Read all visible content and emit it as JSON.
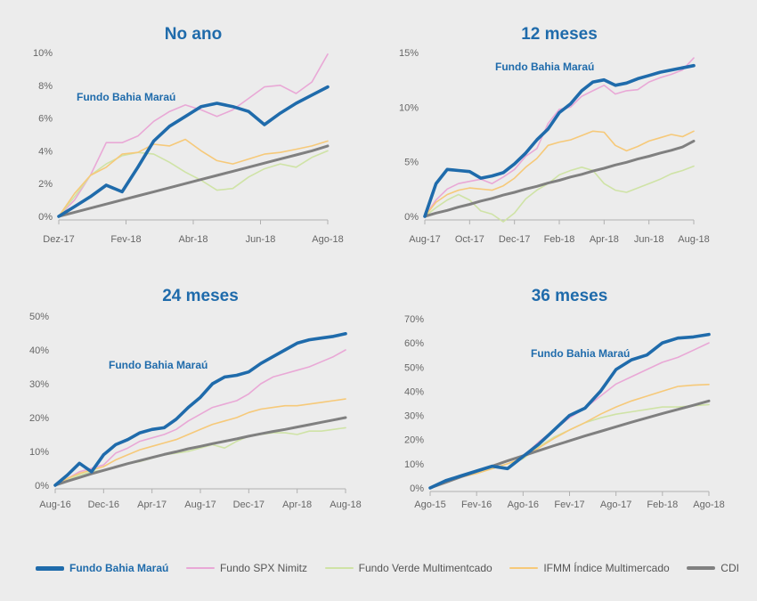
{
  "colors": {
    "background": "#ececec",
    "title": "#1f6bab",
    "axis_text": "#666666",
    "series": {
      "Fundo Bahia Maraú": "#1f6bab",
      "Fundo SPX Nimitz": "#e9a8d6",
      "Fundo Verde Multimentcado": "#cfe3a6",
      "IFMM Índice Multimercado": "#f6c979",
      "CDI": "#808080"
    }
  },
  "legend": {
    "items": [
      "Fundo Bahia Maraú",
      "Fundo SPX Nimitz",
      "Fundo Verde Multimentcado",
      "IFMM Índice Multimercado",
      "CDI"
    ]
  },
  "chart_data": [
    {
      "type": "line",
      "title": "No ano",
      "annotation": "Fundo Bahia Maraú",
      "xlim": [
        0,
        8.5
      ],
      "ylim": [
        0,
        10
      ],
      "yticks": [
        "0%",
        "2%",
        "4%",
        "6%",
        "8%",
        "10%"
      ],
      "xticks": [
        "Dez-17",
        "Fev-18",
        "Abr-18",
        "Jun-18",
        "Ago-18"
      ],
      "x": [
        0,
        0.5,
        1,
        1.5,
        2,
        2.5,
        3,
        3.5,
        4,
        4.5,
        5,
        5.5,
        6,
        6.5,
        7,
        7.5,
        8,
        8.5
      ],
      "series": [
        {
          "name": "Fundo SPX Nimitz",
          "values": [
            0,
            1.0,
            2.5,
            4.5,
            4.5,
            4.9,
            5.8,
            6.4,
            6.8,
            6.5,
            6.1,
            6.5,
            7.2,
            7.9,
            8.0,
            7.5,
            8.2,
            9.9
          ]
        },
        {
          "name": "Fundo Verde Multimentcado",
          "values": [
            0,
            1.2,
            2.5,
            3.2,
            3.7,
            3.9,
            3.8,
            3.3,
            2.7,
            2.2,
            1.6,
            1.7,
            2.4,
            2.9,
            3.2,
            3.0,
            3.6,
            4.0
          ]
        },
        {
          "name": "IFMM Índice Multimercado",
          "values": [
            0,
            1.4,
            2.5,
            3.0,
            3.8,
            3.9,
            4.4,
            4.3,
            4.7,
            4.0,
            3.4,
            3.2,
            3.5,
            3.8,
            3.9,
            4.1,
            4.3,
            4.6
          ]
        },
        {
          "name": "CDI",
          "values": [
            0,
            0.25,
            0.5,
            0.75,
            1.0,
            1.25,
            1.5,
            1.75,
            2.0,
            2.25,
            2.5,
            2.75,
            3.0,
            3.25,
            3.5,
            3.75,
            4.0,
            4.3
          ]
        },
        {
          "name": "Fundo Bahia Maraú",
          "values": [
            0,
            0.6,
            1.2,
            1.9,
            1.5,
            3.0,
            4.6,
            5.5,
            6.1,
            6.7,
            6.9,
            6.7,
            6.4,
            5.6,
            6.3,
            6.9,
            7.4,
            7.9
          ]
        }
      ]
    },
    {
      "type": "line",
      "title": "12 meses",
      "annotation": "Fundo Bahia Maraú",
      "xlim": [
        0,
        12
      ],
      "ylim": [
        0,
        15
      ],
      "yticks": [
        "0%",
        "5%",
        "10%",
        "15%"
      ],
      "xticks": [
        "Aug-17",
        "Oct-17",
        "Dec-17",
        "Feb-18",
        "Apr-18",
        "Jun-18",
        "Aug-18"
      ],
      "x": [
        0,
        0.5,
        1,
        1.5,
        2,
        2.5,
        3,
        3.5,
        4,
        4.5,
        5,
        5.5,
        6,
        6.5,
        7,
        7.5,
        8,
        8.5,
        9,
        9.5,
        10,
        10.5,
        11,
        11.5,
        12
      ],
      "series": [
        {
          "name": "Fundo SPX Nimitz",
          "values": [
            0,
            1.5,
            2.5,
            3.0,
            3.2,
            3.4,
            3.0,
            3.6,
            4.3,
            5.5,
            6.2,
            8.5,
            9.8,
            10.0,
            11.0,
            11.5,
            12.0,
            11.2,
            11.5,
            11.6,
            12.3,
            12.7,
            13.0,
            13.4,
            14.5
          ]
        },
        {
          "name": "Fundo Verde Multimentcado",
          "values": [
            0,
            0.8,
            1.5,
            2.0,
            1.5,
            0.5,
            0.2,
            -0.5,
            0.3,
            1.6,
            2.4,
            3.0,
            3.8,
            4.2,
            4.5,
            4.2,
            3.0,
            2.4,
            2.2,
            2.6,
            3.0,
            3.4,
            3.9,
            4.2,
            4.6
          ]
        },
        {
          "name": "IFMM Índice Multimercado",
          "values": [
            0,
            1.3,
            2.0,
            2.4,
            2.6,
            2.5,
            2.4,
            2.8,
            3.5,
            4.5,
            5.3,
            6.5,
            6.8,
            7.0,
            7.4,
            7.8,
            7.7,
            6.5,
            6.0,
            6.4,
            6.9,
            7.2,
            7.5,
            7.3,
            7.8
          ]
        },
        {
          "name": "CDI",
          "values": [
            0,
            0.3,
            0.55,
            0.85,
            1.1,
            1.4,
            1.65,
            1.95,
            2.2,
            2.5,
            2.75,
            3.05,
            3.3,
            3.6,
            3.85,
            4.15,
            4.4,
            4.7,
            4.95,
            5.25,
            5.5,
            5.8,
            6.05,
            6.35,
            6.9
          ]
        },
        {
          "name": "Fundo Bahia Maraú",
          "values": [
            0,
            3.0,
            4.3,
            4.2,
            4.1,
            3.5,
            3.7,
            4.0,
            4.8,
            5.8,
            7.0,
            8.0,
            9.5,
            10.3,
            11.5,
            12.3,
            12.5,
            12.0,
            12.2,
            12.6,
            12.9,
            13.2,
            13.4,
            13.6,
            13.8
          ]
        }
      ]
    },
    {
      "type": "line",
      "title": "24 meses",
      "annotation": "Fundo Bahia Maraú",
      "xlim": [
        0,
        24
      ],
      "ylim": [
        0,
        50
      ],
      "yticks": [
        "0%",
        "10%",
        "20%",
        "30%",
        "40%",
        "50%"
      ],
      "xticks": [
        "Aug-16",
        "Dec-16",
        "Apr-17",
        "Aug-17",
        "Dec-17",
        "Apr-18",
        "Aug-18"
      ],
      "x": [
        0,
        1,
        2,
        3,
        4,
        5,
        6,
        7,
        8,
        9,
        10,
        11,
        12,
        13,
        14,
        15,
        16,
        17,
        18,
        19,
        20,
        21,
        22,
        23,
        24
      ],
      "series": [
        {
          "name": "Fundo SPX Nimitz",
          "values": [
            0,
            2.0,
            4.0,
            5.0,
            6.0,
            9.5,
            11.0,
            13.0,
            14.0,
            15.0,
            16.5,
            19.0,
            21.0,
            23.0,
            24.0,
            25.0,
            27.0,
            30.0,
            32.0,
            33.0,
            34.0,
            35.0,
            36.5,
            38.0,
            40.0
          ]
        },
        {
          "name": "Fundo Verde Multimentcado",
          "values": [
            0,
            1.5,
            3.0,
            4.0,
            4.5,
            5.5,
            6.5,
            7.0,
            8.0,
            9.0,
            9.5,
            10.0,
            11.0,
            12.0,
            11.0,
            13.0,
            14.5,
            15.0,
            15.5,
            15.5,
            15.0,
            16.0,
            16.0,
            16.5,
            17.0
          ]
        },
        {
          "name": "IFMM Índice Multimercado",
          "values": [
            0,
            2.0,
            3.5,
            4.5,
            5.5,
            7.5,
            9.0,
            10.5,
            11.5,
            12.5,
            13.5,
            15.0,
            16.5,
            18.0,
            19.0,
            20.0,
            21.5,
            22.5,
            23.0,
            23.5,
            23.5,
            24.0,
            24.5,
            25.0,
            25.5
          ]
        },
        {
          "name": "CDI",
          "values": [
            0,
            1.2,
            2.3,
            3.4,
            4.4,
            5.4,
            6.4,
            7.3,
            8.2,
            9.1,
            9.9,
            10.8,
            11.5,
            12.3,
            13.0,
            13.7,
            14.5,
            15.2,
            15.9,
            16.5,
            17.2,
            17.9,
            18.6,
            19.3,
            20.0
          ]
        },
        {
          "name": "Fundo Bahia Maraú",
          "values": [
            0,
            3.0,
            6.5,
            4.0,
            9.0,
            12.0,
            13.5,
            15.5,
            16.5,
            17.0,
            19.5,
            23.0,
            26.0,
            30.0,
            32.0,
            32.5,
            33.5,
            36.0,
            38.0,
            40.0,
            42.0,
            43.0,
            43.5,
            44.0,
            44.8
          ]
        }
      ]
    },
    {
      "type": "line",
      "title": "36 meses",
      "annotation": "Fundo Bahia Maraú",
      "xlim": [
        0,
        36
      ],
      "ylim": [
        0,
        70
      ],
      "yticks": [
        "0%",
        "10%",
        "20%",
        "30%",
        "40%",
        "50%",
        "60%",
        "70%"
      ],
      "xticks": [
        "Ago-15",
        "Fev-16",
        "Ago-16",
        "Fev-17",
        "Ago-17",
        "Feb-18",
        "Ago-18"
      ],
      "x": [
        0,
        2,
        4,
        6,
        8,
        10,
        12,
        14,
        16,
        18,
        20,
        22,
        24,
        26,
        28,
        30,
        32,
        34,
        36
      ],
      "series": [
        {
          "name": "Fundo SPX Nimitz",
          "values": [
            0,
            2.5,
            4.5,
            6.0,
            9.0,
            11.0,
            13.0,
            19.0,
            24.0,
            29.0,
            33.0,
            38.0,
            43.0,
            46.0,
            49.0,
            52.0,
            54.0,
            57.0,
            60.0
          ]
        },
        {
          "name": "Fundo Verde Multimentcado",
          "values": [
            0,
            2.5,
            4.5,
            6.0,
            8.0,
            10.0,
            12.0,
            17.0,
            21.0,
            24.0,
            27.0,
            29.0,
            30.5,
            31.5,
            32.5,
            33.5,
            33.5,
            34.0,
            34.5
          ]
        },
        {
          "name": "IFMM Índice Multimercado",
          "values": [
            0,
            2.5,
            4.5,
            6.0,
            8.0,
            10.0,
            12.5,
            16.5,
            20.5,
            24.0,
            27.0,
            30.5,
            33.5,
            36.0,
            38.0,
            40.0,
            42.0,
            42.5,
            42.8
          ]
        },
        {
          "name": "CDI",
          "values": [
            0,
            2.3,
            4.6,
            6.8,
            9.0,
            11.2,
            13.3,
            15.4,
            17.5,
            19.5,
            21.5,
            23.4,
            25.3,
            27.2,
            29.0,
            30.8,
            32.5,
            34.2,
            36.0
          ]
        },
        {
          "name": "Fundo Bahia Maraú",
          "values": [
            0,
            3.0,
            5.0,
            7.0,
            9.0,
            8.0,
            13.0,
            18.0,
            24.0,
            30.0,
            33.0,
            40.0,
            49.0,
            53.0,
            55.0,
            60.0,
            62.0,
            62.5,
            63.5
          ]
        }
      ]
    }
  ]
}
